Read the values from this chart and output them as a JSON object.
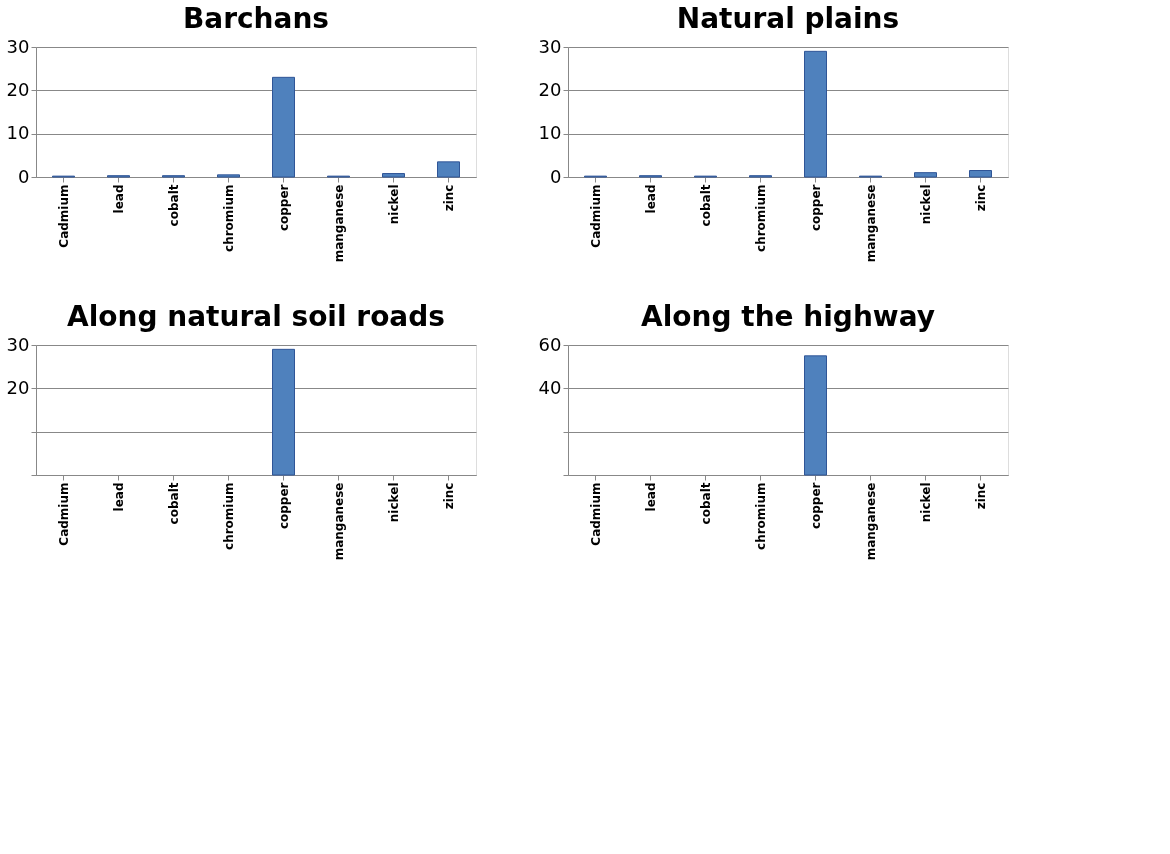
{
  "chart_data": [
    {
      "type": "bar",
      "title": "Barchans",
      "categories": [
        "Cadmium",
        "lead",
        "cobalt",
        "chromium",
        "copper",
        "manganese",
        "nickel",
        "zinc"
      ],
      "values": [
        0.2,
        0.3,
        0.3,
        0.5,
        23,
        0.2,
        0.8,
        3.5
      ],
      "color": "#4f81bd",
      "ylim": [
        0,
        30
      ],
      "yticks": [
        0,
        10,
        20,
        30
      ],
      "grid": "y"
    },
    {
      "type": "bar",
      "title": "Natural plains",
      "categories": [
        "Cadmium",
        "lead",
        "cobalt",
        "chromium",
        "copper",
        "manganese",
        "nickel",
        "zinc"
      ],
      "values": [
        0.2,
        0.3,
        0.2,
        0.3,
        29,
        0.2,
        1,
        1.5
      ],
      "color": "#4f81bd",
      "ylim": [
        0,
        30
      ],
      "yticks": [
        0,
        10,
        20,
        30
      ],
      "grid": "y"
    },
    {
      "type": "bar",
      "title": "Along natural soil roads",
      "categories": [
        "Cadmium",
        "lead",
        "cobalt",
        "chromium",
        "copper",
        "manganese",
        "nickel",
        "zinc"
      ],
      "values": [
        null,
        null,
        null,
        null,
        29,
        null,
        null,
        null
      ],
      "color": "#4f81bd",
      "ylim": [
        0,
        30
      ],
      "yticks": [
        {
          "value": 0,
          "label": null
        },
        {
          "value": 10,
          "label": null
        },
        20,
        30
      ],
      "grid": "y"
    },
    {
      "type": "bar",
      "title": "Along the highway",
      "categories": [
        "Cadmium",
        "lead",
        "cobalt",
        "chromium",
        "copper",
        "manganese",
        "nickel",
        "zinc"
      ],
      "values": [
        null,
        null,
        null,
        null,
        55,
        null,
        null,
        null
      ],
      "color": "#4f81bd",
      "ylim": [
        0,
        60
      ],
      "yticks": [
        {
          "value": 0,
          "label": null
        },
        {
          "value": 20,
          "label": null
        },
        40,
        60
      ],
      "grid": "y"
    }
  ]
}
